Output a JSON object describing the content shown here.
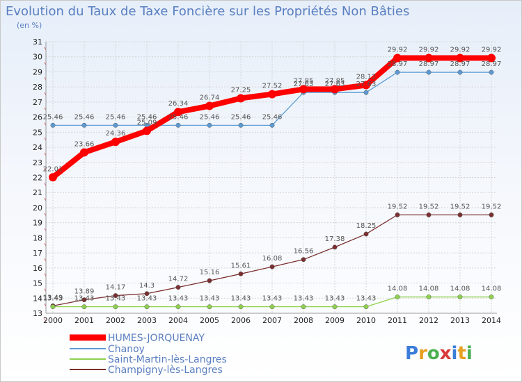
{
  "chart_data": {
    "type": "line",
    "title": "Evolution du Taux de Taxe Foncière sur les Propriétés Non Bâties",
    "subtitle": "(en %)",
    "x": [
      "2000",
      "2001",
      "2002",
      "2003",
      "2004",
      "2005",
      "2006",
      "2007",
      "2008",
      "2009",
      "2010",
      "2011",
      "2012",
      "2013",
      "2014"
    ],
    "ylim": [
      13,
      31
    ],
    "yticks": [
      13,
      14,
      15,
      16,
      17,
      18,
      19,
      20,
      21,
      22,
      23,
      24,
      25,
      26,
      27,
      28,
      29,
      30,
      31
    ],
    "series": [
      {
        "name": "HUMES-JORQUENAY",
        "color": "#ff0000",
        "values": [
          22.01,
          23.66,
          24.36,
          25.09,
          26.34,
          26.74,
          27.25,
          27.52,
          27.85,
          27.85,
          28.12,
          29.92,
          29.92,
          29.92,
          29.92
        ],
        "labels": [
          "22.01",
          "23.66",
          "24.36",
          "25.09",
          "26.34",
          "26.74",
          "27.25",
          "27.52",
          "27.85",
          "27.85",
          "28.12",
          "29.92",
          "29.92",
          "29.92",
          "29.92"
        ]
      },
      {
        "name": "Chanoy",
        "color": "#5b9bd5",
        "values": [
          25.46,
          25.46,
          25.46,
          25.46,
          25.46,
          25.46,
          25.46,
          25.46,
          27.63,
          27.63,
          27.63,
          28.97,
          28.97,
          28.97,
          28.97
        ],
        "labels": [
          "25.46",
          "25.46",
          "25.46",
          "25.46",
          "25.46",
          "25.46",
          "25.46",
          "25.46",
          "27.63",
          "27.63",
          "27.63",
          "28.97",
          "28.97",
          "28.97",
          "28.97"
        ]
      },
      {
        "name": "Saint-Martin-lès-Langres",
        "color": "#8fd14f",
        "values": [
          13.43,
          13.43,
          13.43,
          13.43,
          13.43,
          13.43,
          13.43,
          13.43,
          13.43,
          13.43,
          13.43,
          14.08,
          14.08,
          14.08,
          14.08
        ],
        "labels": [
          "13.43",
          "13.43",
          "13.43",
          "13.43",
          "13.43",
          "13.43",
          "13.43",
          "13.43",
          "13.43",
          "13.43",
          "13.43",
          "14.08",
          "14.08",
          "14.08",
          "14.08"
        ]
      },
      {
        "name": "Champigny-lès-Langres",
        "color": "#7b2f2f",
        "values": [
          13.49,
          13.89,
          14.17,
          14.3,
          14.72,
          15.16,
          15.61,
          16.08,
          16.56,
          17.38,
          18.25,
          19.52,
          19.52,
          19.52,
          19.52
        ],
        "labels": [
          "13.49",
          "13.89",
          "14.17",
          "14.3",
          "14.72",
          "15.16",
          "15.61",
          "16.08",
          "16.56",
          "17.38",
          "18.25",
          "19.52",
          "19.52",
          "19.52",
          "19.52"
        ]
      }
    ]
  },
  "logo": {
    "text": "Proxiti"
  }
}
